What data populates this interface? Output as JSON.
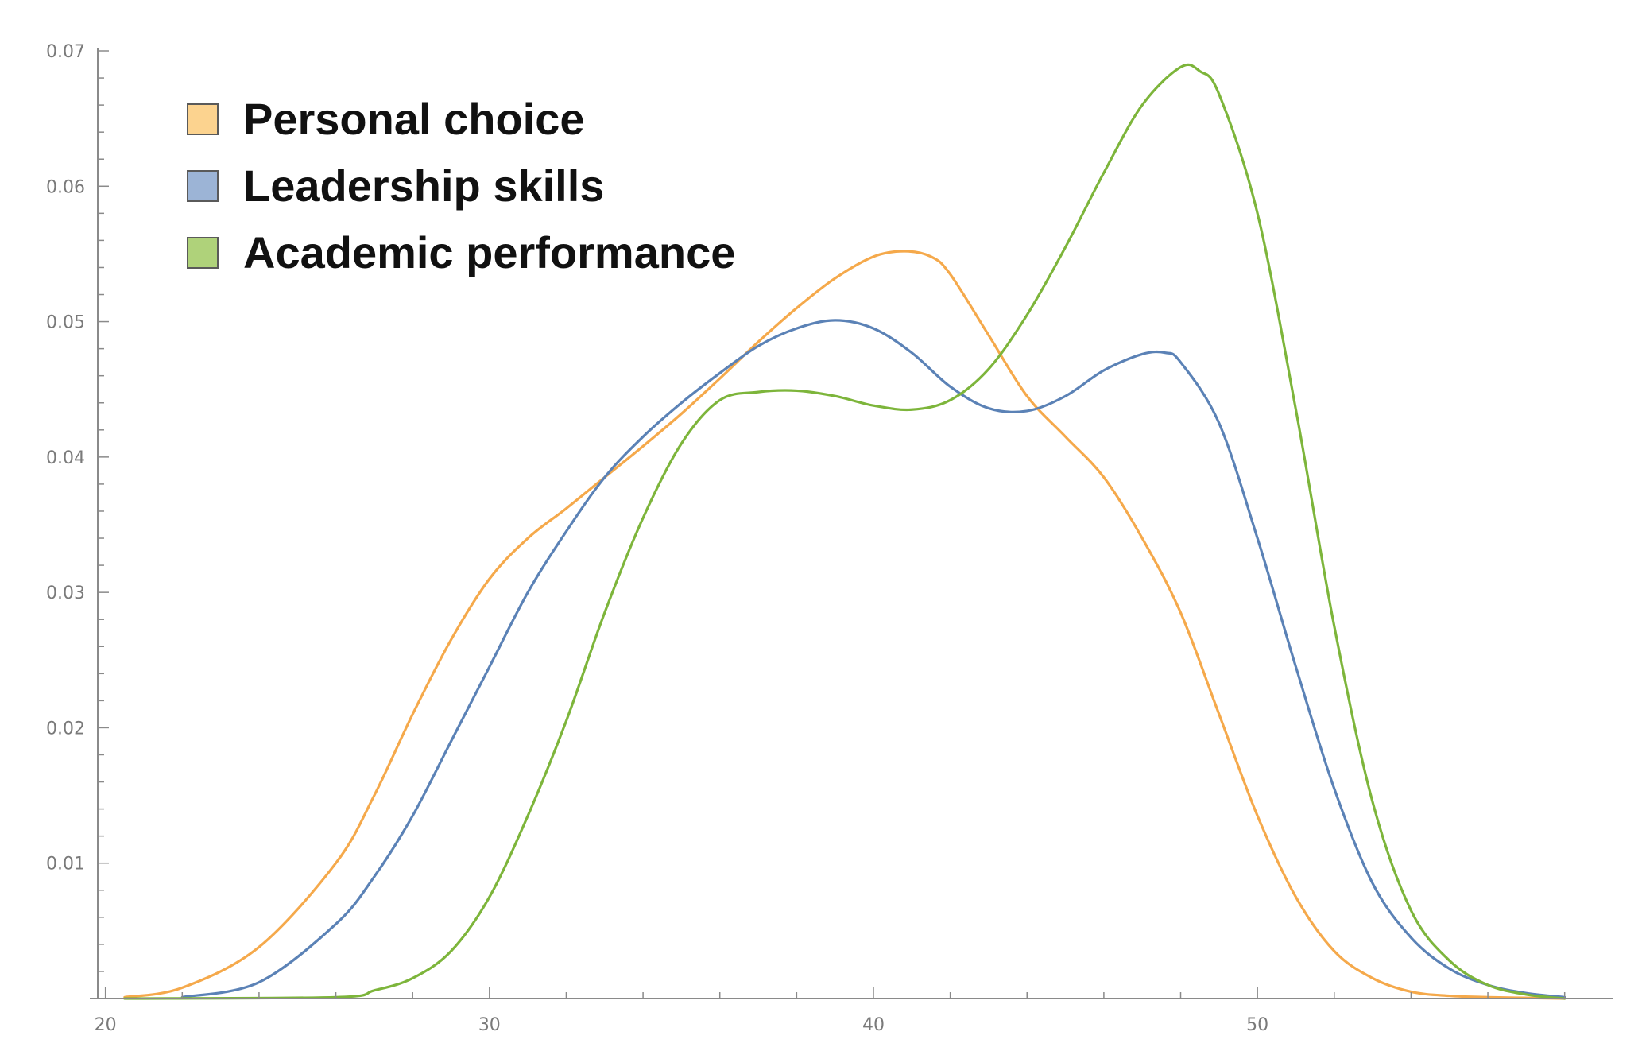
{
  "chart_data": {
    "type": "line",
    "title": "",
    "xlabel": "",
    "ylabel": "",
    "xlim": [
      19.8,
      59
    ],
    "ylim": [
      0,
      0.07
    ],
    "x_ticks": [
      20,
      30,
      40,
      50
    ],
    "x_tick_labels": [
      "20",
      "30",
      "40",
      "50"
    ],
    "y_ticks": [
      0.01,
      0.02,
      0.03,
      0.04,
      0.05,
      0.06,
      0.07
    ],
    "y_tick_labels": [
      "0.01",
      "0.02",
      "0.03",
      "0.04",
      "0.05",
      "0.06",
      "0.07"
    ],
    "grid": false,
    "legend_position": "top-left",
    "series": [
      {
        "name": "Personal choice",
        "color": "#F5A94B",
        "fill_color": "#FCD38F",
        "x": [
          20.5,
          22,
          24,
          26,
          27,
          28,
          29,
          30,
          31,
          32,
          33,
          34,
          35,
          36,
          37,
          38,
          39,
          40,
          40.8,
          41.5,
          42,
          43,
          44,
          45,
          46,
          47,
          48,
          49,
          50,
          51,
          52,
          53,
          54,
          55,
          56,
          58
        ],
        "y": [
          0.0001,
          0.0008,
          0.0038,
          0.01,
          0.015,
          0.021,
          0.0265,
          0.031,
          0.034,
          0.0362,
          0.0385,
          0.0408,
          0.0432,
          0.0458,
          0.0485,
          0.051,
          0.0532,
          0.0548,
          0.0552,
          0.0548,
          0.0535,
          0.049,
          0.0445,
          0.0415,
          0.0385,
          0.034,
          0.0285,
          0.021,
          0.0135,
          0.0075,
          0.0035,
          0.0015,
          0.0005,
          0.0002,
          0.0001,
          0.0
        ]
      },
      {
        "name": "Leadership skills",
        "color": "#5B82B6",
        "fill_color": "#9CB4D6",
        "x": [
          22,
          24,
          26,
          27,
          28,
          29,
          30,
          31,
          32,
          33,
          34,
          35,
          36,
          37,
          38,
          39,
          40,
          41,
          42,
          43,
          44,
          45,
          46,
          47,
          47.6,
          48,
          49,
          50,
          51,
          52,
          53,
          54,
          55,
          56,
          57,
          58
        ],
        "y": [
          0.0001,
          0.0012,
          0.0055,
          0.009,
          0.0135,
          0.019,
          0.0245,
          0.03,
          0.0345,
          0.0385,
          0.0415,
          0.044,
          0.0462,
          0.0482,
          0.0495,
          0.0501,
          0.0495,
          0.0477,
          0.0452,
          0.0436,
          0.0434,
          0.0445,
          0.0464,
          0.0476,
          0.0477,
          0.047,
          0.0425,
          0.034,
          0.0245,
          0.0155,
          0.0085,
          0.0045,
          0.0022,
          0.001,
          0.0004,
          0.0001
        ]
      },
      {
        "name": "Academic performance",
        "color": "#7DB53B",
        "fill_color": "#AFD27A",
        "x": [
          20.5,
          26,
          27,
          28,
          29,
          30,
          31,
          32,
          33,
          34,
          35,
          36,
          37,
          38,
          39,
          40,
          41,
          42,
          43,
          44,
          45,
          46,
          47,
          48,
          48.5,
          49,
          50,
          51,
          52,
          53,
          54,
          55,
          56,
          57,
          58
        ],
        "y": [
          0.0,
          0.0001,
          0.0006,
          0.0015,
          0.0035,
          0.0075,
          0.0135,
          0.0205,
          0.0285,
          0.0355,
          0.041,
          0.0442,
          0.0448,
          0.0449,
          0.0445,
          0.0438,
          0.0435,
          0.0442,
          0.0465,
          0.0505,
          0.0555,
          0.061,
          0.066,
          0.0688,
          0.0685,
          0.0668,
          0.058,
          0.0435,
          0.0275,
          0.0145,
          0.0065,
          0.0028,
          0.001,
          0.0003,
          0.0
        ]
      }
    ]
  }
}
